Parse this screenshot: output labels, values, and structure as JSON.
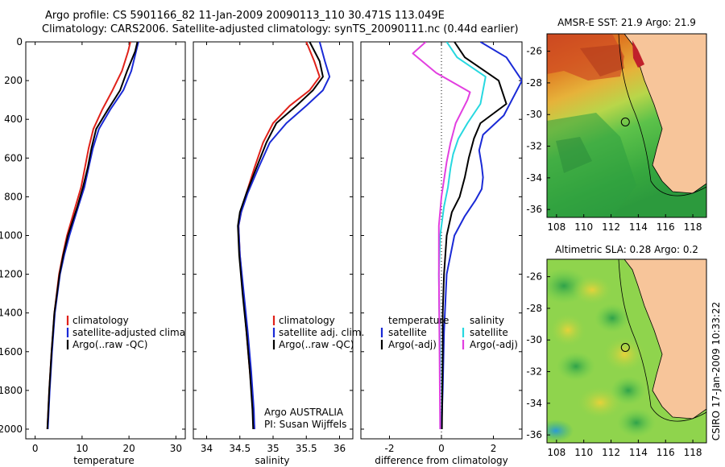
{
  "header": {
    "line1": "Argo profile: CS 5901166_82 11-Jan-2009 20090113_110 30.471S 113.049E",
    "line2": "Climatology: CARS2006. Satellite-adjusted climatology: synTS_20090111.nc (0.44d earlier)"
  },
  "colors": {
    "climatology": "#e0221a",
    "satellite": "#1a2ad6",
    "argo": "#000000",
    "cyan": "#27d8e0",
    "magenta": "#e23fe0"
  },
  "chart_data": [
    {
      "type": "line",
      "xlabel": "temperature",
      "ylabel": "",
      "xlim": [
        -2,
        32
      ],
      "ylim": [
        2050,
        0
      ],
      "xticks": [
        0,
        10,
        20,
        30
      ],
      "yticks": [
        0,
        200,
        400,
        600,
        800,
        1000,
        1200,
        1400,
        1600,
        1800,
        2000
      ],
      "legend": {
        "position": "lower-right",
        "entries": [
          "climatology",
          "satellite-adjusted climatology",
          "Argo(..raw -QC)"
        ]
      },
      "series": [
        {
          "name": "climatology",
          "color": "#e0221a",
          "x": [
            20.3,
            19.8,
            18.5,
            16.5,
            14.3,
            12.4,
            11.4,
            10.6,
            9.8,
            8.6,
            6.8,
            5.9,
            5.1,
            4.1,
            3.5,
            3.0,
            2.6
          ],
          "y": [
            0,
            50,
            150,
            250,
            350,
            450,
            550,
            650,
            750,
            850,
            1000,
            1100,
            1200,
            1400,
            1600,
            1800,
            2000
          ]
        },
        {
          "name": "satellite-adjusted climatology",
          "color": "#1a2ad6",
          "x": [
            22.0,
            21.5,
            20.5,
            18.8,
            16.0,
            13.6,
            12.3,
            11.4,
            10.5,
            9.2,
            7.3,
            6.2,
            5.3,
            4.2,
            3.6,
            3.1,
            2.7
          ],
          "y": [
            0,
            50,
            150,
            250,
            350,
            450,
            550,
            650,
            750,
            850,
            1000,
            1100,
            1200,
            1400,
            1600,
            1800,
            2000
          ]
        },
        {
          "name": "Argo(..raw -QC)",
          "color": "#000000",
          "x": [
            21.8,
            21.3,
            19.6,
            18.1,
            15.5,
            13.0,
            12.0,
            11.2,
            10.2,
            9.0,
            7.0,
            6.0,
            5.2,
            4.1,
            3.5,
            3.0,
            2.6
          ],
          "y": [
            0,
            50,
            150,
            250,
            350,
            450,
            550,
            650,
            750,
            850,
            1000,
            1100,
            1200,
            1400,
            1600,
            1800,
            2000
          ]
        }
      ]
    },
    {
      "type": "line",
      "xlabel": "salinity",
      "xlim": [
        33.8,
        36.2
      ],
      "ylim": [
        2050,
        0
      ],
      "xticks": [
        34,
        34.5,
        35,
        35.5,
        36
      ],
      "legend": {
        "position": "lower-right",
        "entries": [
          "climatology",
          "satellite adj. clim.",
          "Argo(..raw -QC)"
        ]
      },
      "annotation": [
        "Argo AUSTRALIA",
        "PI: Susan Wijffels"
      ],
      "series": [
        {
          "name": "climatology",
          "color": "#e0221a",
          "x": [
            35.5,
            35.62,
            35.7,
            35.55,
            35.25,
            35.0,
            34.85,
            34.72,
            34.6,
            34.52,
            34.48,
            34.5,
            34.55,
            34.6,
            34.65,
            34.7,
            34.72
          ],
          "y": [
            0,
            100,
            180,
            250,
            330,
            420,
            520,
            650,
            780,
            880,
            950,
            1100,
            1300,
            1500,
            1700,
            1900,
            2000
          ]
        },
        {
          "name": "satellite adj. clim.",
          "color": "#1a2ad6",
          "x": [
            35.7,
            35.78,
            35.85,
            35.75,
            35.5,
            35.2,
            34.95,
            34.78,
            34.62,
            34.52,
            34.48,
            34.5,
            34.56,
            34.62,
            34.67,
            34.71,
            34.72
          ],
          "y": [
            0,
            100,
            180,
            250,
            330,
            420,
            520,
            650,
            780,
            880,
            950,
            1100,
            1300,
            1500,
            1700,
            1900,
            2000
          ]
        },
        {
          "name": "Argo(..raw -QC)",
          "color": "#000000",
          "x": [
            35.55,
            35.7,
            35.75,
            35.6,
            35.35,
            35.05,
            34.9,
            34.75,
            34.6,
            34.5,
            34.47,
            34.49,
            34.54,
            34.6,
            34.65,
            34.69,
            34.7
          ],
          "y": [
            0,
            100,
            180,
            250,
            330,
            420,
            520,
            650,
            780,
            880,
            950,
            1100,
            1300,
            1500,
            1700,
            1900,
            2000
          ]
        }
      ]
    },
    {
      "type": "line",
      "xlabel": "difference from climatology",
      "xlim": [
        -3.1,
        3.1
      ],
      "ylim": [
        2050,
        0
      ],
      "xticks": [
        -2,
        0,
        2
      ],
      "zero_line": "dotted",
      "legend": {
        "position": "lower-center",
        "headers": [
          "temperature",
          "salinity"
        ],
        "entries": [
          "satellite",
          "Argo(-adj)",
          "satellite",
          "Argo(-adj)"
        ]
      },
      "series": [
        {
          "name": "temperature satellite",
          "color": "#1a2ad6",
          "x": [
            1.5,
            2.5,
            3.1,
            2.4,
            1.6,
            1.45,
            1.55,
            1.6,
            1.55,
            1.3,
            0.9,
            0.5,
            0.2,
            0.1,
            0.05,
            0.0
          ],
          "y": [
            0,
            80,
            200,
            380,
            480,
            560,
            640,
            700,
            760,
            820,
            900,
            1000,
            1200,
            1500,
            1800,
            2000
          ]
        },
        {
          "name": "temperature Argo(-adj)",
          "color": "#000000",
          "x": [
            0.5,
            0.9,
            2.2,
            2.5,
            1.5,
            1.25,
            1.05,
            0.9,
            0.7,
            0.4,
            0.2,
            0.1,
            0.05,
            0.05,
            0.03,
            0.02
          ],
          "y": [
            0,
            80,
            200,
            320,
            420,
            500,
            600,
            700,
            800,
            880,
            1000,
            1200,
            1400,
            1600,
            1800,
            2000
          ]
        },
        {
          "name": "salinity satellite",
          "color": "#27d8e0",
          "x": [
            0.2,
            0.6,
            1.7,
            1.5,
            1.0,
            0.65,
            0.45,
            0.35,
            0.25,
            0.1,
            -0.05,
            -0.1,
            -0.08,
            -0.05,
            -0.05,
            -0.05
          ],
          "y": [
            0,
            80,
            180,
            320,
            420,
            500,
            580,
            650,
            750,
            850,
            1000,
            1200,
            1400,
            1600,
            1800,
            2000
          ]
        },
        {
          "name": "salinity Argo(-adj)",
          "color": "#e23fe0",
          "x": [
            -0.6,
            -1.1,
            -0.2,
            1.1,
            1.0,
            0.55,
            0.35,
            0.2,
            0.0,
            -0.1,
            -0.1,
            -0.08,
            -0.05
          ],
          "y": [
            0,
            60,
            160,
            260,
            300,
            420,
            520,
            620,
            800,
            950,
            1200,
            1500,
            2000
          ]
        }
      ]
    },
    {
      "type": "heatmap",
      "title": "AMSR-E SST: 21.9 Argo: 21.9",
      "xlim": [
        107.3,
        119.0
      ],
      "ylim": [
        -36.5,
        -24.9
      ],
      "xticks": [
        108,
        110,
        112,
        114,
        116,
        118
      ],
      "yticks": [
        -26,
        -28,
        -30,
        -32,
        -34,
        -36
      ],
      "marker": {
        "lon": 113.049,
        "lat": -30.471
      }
    },
    {
      "type": "heatmap",
      "title": "Altimetric SLA: 0.28 Argo: 0.2",
      "xlim": [
        107.3,
        119.0
      ],
      "ylim": [
        -36.5,
        -24.9
      ],
      "xticks": [
        108,
        110,
        112,
        114,
        116,
        118
      ],
      "yticks": [
        -26,
        -28,
        -30,
        -32,
        -34,
        -36
      ],
      "marker": {
        "lon": 113.049,
        "lat": -30.471
      }
    }
  ],
  "footer": {
    "credit": "CSIRO 17-Jan-2009 10:33:22"
  }
}
